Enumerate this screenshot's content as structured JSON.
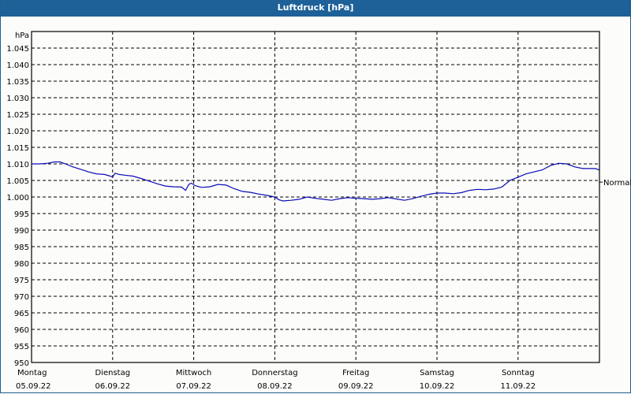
{
  "window": {
    "title": "Luftdruck [hPa]"
  },
  "chart_data": {
    "type": "line",
    "title": "Luftdruck [hPa]",
    "ylabel": "hPa",
    "xlabel": "",
    "ylim": [
      950,
      1050
    ],
    "grid": true,
    "y_ticks": [
      "950",
      "955",
      "960",
      "965",
      "970",
      "975",
      "980",
      "985",
      "990",
      "995",
      "1.000",
      "1.005",
      "1.010",
      "1.015",
      "1.020",
      "1.025",
      "1.030",
      "1.035",
      "1.040",
      "1.045"
    ],
    "y_tick_values": [
      950,
      955,
      960,
      965,
      970,
      975,
      980,
      985,
      990,
      995,
      1000,
      1005,
      1010,
      1015,
      1020,
      1025,
      1030,
      1035,
      1040,
      1045
    ],
    "categories": [
      {
        "day": "Montag",
        "date": "05.09.22"
      },
      {
        "day": "Dienstag",
        "date": "06.09.22"
      },
      {
        "day": "Mittwoch",
        "date": "07.09.22"
      },
      {
        "day": "Donnerstag",
        "date": "08.09.22"
      },
      {
        "day": "Freitag",
        "date": "09.09.22"
      },
      {
        "day": "Samstag",
        "date": "10.09.22"
      },
      {
        "day": "Sonntag",
        "date": "11.09.22"
      }
    ],
    "reference_line": {
      "label": "Normal",
      "value": 1004.5
    },
    "series": [
      {
        "name": "Luftdruck",
        "color": "#0a0ab4",
        "x_days": [
          0,
          0.1,
          0.2,
          0.28,
          0.35,
          0.42,
          0.5,
          0.6,
          0.7,
          0.8,
          0.9,
          0.97,
          1.0,
          1.03,
          1.08,
          1.15,
          1.25,
          1.35,
          1.45,
          1.55,
          1.65,
          1.75,
          1.85,
          1.9,
          1.94,
          1.97,
          2.02,
          2.1,
          2.2,
          2.3,
          2.4,
          2.5,
          2.6,
          2.7,
          2.8,
          2.9,
          3.0,
          3.05,
          3.1,
          3.2,
          3.3,
          3.4,
          3.5,
          3.6,
          3.7,
          3.8,
          3.9,
          4.0,
          4.1,
          4.2,
          4.3,
          4.4,
          4.5,
          4.6,
          4.7,
          4.8,
          4.9,
          5.0,
          5.1,
          5.2,
          5.3,
          5.4,
          5.5,
          5.6,
          5.7,
          5.8,
          5.9,
          6.0,
          6.1,
          6.2,
          6.3,
          6.4,
          6.5,
          6.6,
          6.7,
          6.8,
          6.95,
          7.0
        ],
        "values": [
          1010.0,
          1010.0,
          1010.2,
          1010.6,
          1010.6,
          1010.0,
          1009.2,
          1008.4,
          1007.6,
          1007.0,
          1006.8,
          1006.3,
          1006.0,
          1007.2,
          1006.8,
          1006.6,
          1006.3,
          1005.6,
          1004.8,
          1004.0,
          1003.3,
          1003.1,
          1003.0,
          1002.0,
          1003.8,
          1004.2,
          1003.4,
          1002.9,
          1003.1,
          1003.8,
          1003.6,
          1002.5,
          1001.7,
          1001.4,
          1000.9,
          1000.5,
          1000.0,
          999.2,
          998.8,
          999.0,
          999.3,
          1000.0,
          999.6,
          999.3,
          999.0,
          999.5,
          999.8,
          999.6,
          999.5,
          999.3,
          999.5,
          999.8,
          999.4,
          999.0,
          999.5,
          1000.2,
          1000.8,
          1001.2,
          1001.2,
          1001.0,
          1001.3,
          1002.0,
          1002.3,
          1002.2,
          1002.4,
          1003.0,
          1005.0,
          1006.0,
          1007.0,
          1007.6,
          1008.2,
          1009.5,
          1010.2,
          1010.0,
          1009.1,
          1008.6,
          1008.6,
          1008.2
        ]
      }
    ]
  }
}
